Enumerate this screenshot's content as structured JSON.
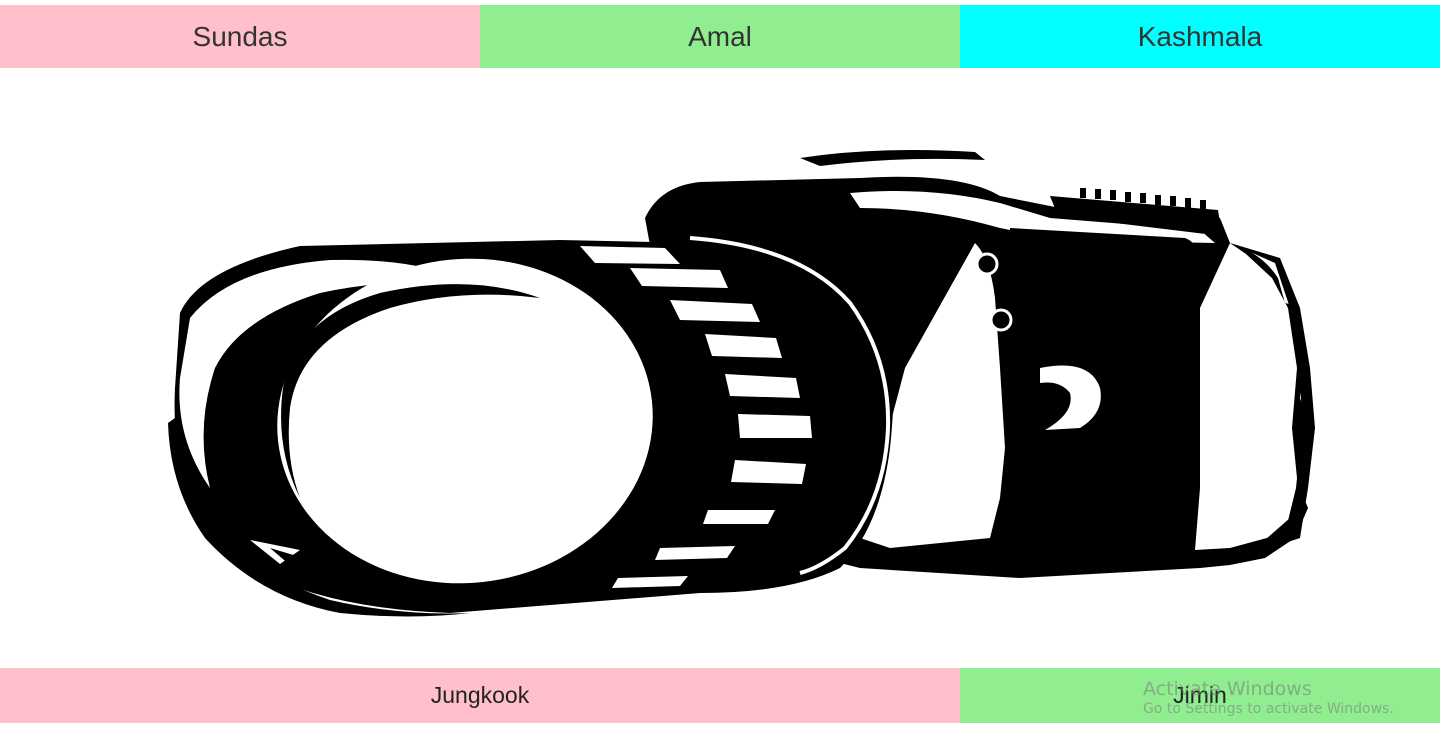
{
  "top_nav": {
    "items": [
      {
        "label": "Sundas",
        "color": "#ffc0cb"
      },
      {
        "label": "Amal",
        "color": "#90ee90"
      },
      {
        "label": "Kashmala",
        "color": "#00ffff"
      }
    ]
  },
  "hero": {
    "icon": "camera-icon"
  },
  "bottom_nav": {
    "items": [
      {
        "label": "Jungkook",
        "color": "#ffc0cb"
      },
      {
        "label": "Jimin",
        "color": "#90ee90"
      }
    ]
  },
  "watermark": {
    "title": "Activate Windows",
    "subtitle": "Go to Settings to activate Windows."
  }
}
